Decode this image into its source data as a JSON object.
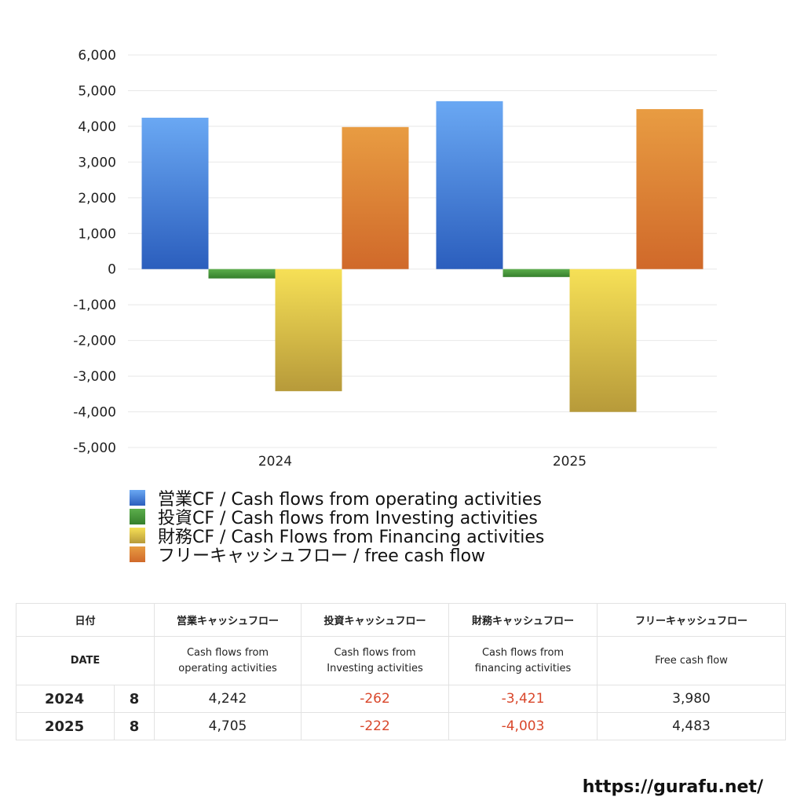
{
  "chart_data": {
    "type": "bar",
    "categories": [
      "2024",
      "2025"
    ],
    "series": [
      {
        "name": "営業CF / Cash flows from operating activities",
        "values": [
          4242,
          4705
        ],
        "color_top": "#6aa8f3",
        "color_bottom": "#2b5ebd"
      },
      {
        "name": "投資CF / Cash flows from Investing activities",
        "values": [
          -262,
          -222
        ],
        "color_top": "#5cae4c",
        "color_bottom": "#357f2c"
      },
      {
        "name": "財務CF / Cash Flows from Financing activities",
        "values": [
          -3421,
          -4003
        ],
        "color_top": "#f6e056",
        "color_bottom": "#b79a3a"
      },
      {
        "name": "フリーキャッシュフロー / free cash flow",
        "values": [
          3980,
          4483
        ],
        "color_top": "#e89c42",
        "color_bottom": "#d0692a"
      }
    ],
    "ylim": [
      -5000,
      6000
    ],
    "yticks": [
      6000,
      5000,
      4000,
      3000,
      2000,
      1000,
      0,
      -1000,
      -2000,
      -3000,
      -4000,
      -5000
    ],
    "ytick_labels": [
      "6,000",
      "5,000",
      "4,000",
      "3,000",
      "2,000",
      "1,000",
      "0",
      "-1,000",
      "-2,000",
      "-3,000",
      "-4,000",
      "-5,000"
    ],
    "grid": true,
    "legend": "bottom"
  },
  "table": {
    "header_jp": [
      "日付",
      "営業キャッシュフロー",
      "投資キャッシュフロー",
      "財務キャッシュフロー",
      "フリーキャッシュフロー"
    ],
    "header_en": [
      "DATE",
      "Cash flows from operating activities",
      "Cash flows from Investing activities",
      "Cash flows from financing activities",
      "Free cash flow"
    ],
    "rows": [
      {
        "year": "2024",
        "month": "8",
        "op": "4,242",
        "inv": "-262",
        "fin": "-3,421",
        "free": "3,980"
      },
      {
        "year": "2025",
        "month": "8",
        "op": "4,705",
        "inv": "-222",
        "fin": "-4,003",
        "free": "4,483"
      }
    ]
  },
  "footer": {
    "url": "https://gurafu.net/"
  }
}
